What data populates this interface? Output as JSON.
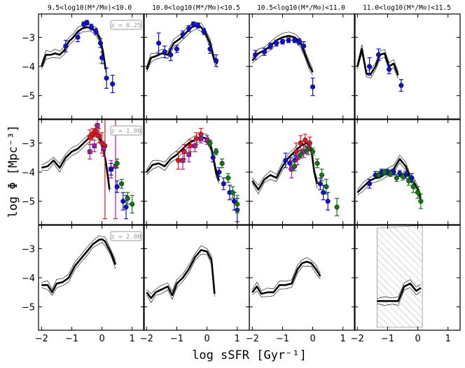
{
  "chart_data": {
    "type": "line",
    "title": "",
    "xlabel": "log sSFR [Gyr⁻¹]",
    "ylabel": "log Φ [Mpc⁻³]",
    "xlim": [
      -2.1,
      1.4
    ],
    "ylim": [
      -5.8,
      -2.2
    ],
    "x_ticks": [
      "−2",
      "−1",
      "0",
      "1"
    ],
    "y_ticks": [
      "−3",
      "−4",
      "−5"
    ],
    "columns": [
      "9.5<log10(M*/M⊙)<10.0",
      "10.0<log10(M*/M⊙)<10.5",
      "10.5<log10(M*/M⊙)<11.0",
      "11.0<log10(M*/M⊙)<11.5"
    ],
    "z_labels": [
      "z = 0.25",
      "z = 1.00",
      "z = 2.00"
    ],
    "colors": {
      "model": "#000000",
      "blue": "#1010cc",
      "red": "#ee1111",
      "purple": "#a020a0",
      "green": "#117711",
      "hatch": "#888888"
    },
    "panels": [
      {
        "row": 0,
        "col": 0,
        "model": {
          "x": [
            -2.0,
            -1.85,
            -1.7,
            -1.55,
            -1.4,
            -1.25,
            -1.1,
            -0.95,
            -0.8,
            -0.65,
            -0.5,
            -0.35,
            -0.2,
            -0.05,
            0.05,
            0.12
          ],
          "y": [
            -4.0,
            -3.6,
            -3.6,
            -3.55,
            -3.6,
            -3.45,
            -3.15,
            -3.0,
            -2.8,
            -2.7,
            -2.65,
            -2.7,
            -2.8,
            -3.1,
            -3.6,
            -4.1
          ]
        },
        "observations": [
          {
            "color": "blue",
            "x": [
              -1.2,
              -0.8,
              -0.6,
              -0.5,
              -0.35,
              -0.2,
              -0.05,
              0.0,
              0.15,
              0.35
            ],
            "y": [
              -3.3,
              -3.0,
              -2.55,
              -2.5,
              -2.65,
              -2.8,
              -3.2,
              -3.7,
              -4.4,
              -4.6
            ],
            "err": [
              0.2,
              0.15,
              0.08,
              0.08,
              0.1,
              0.1,
              0.15,
              0.2,
              0.35,
              0.3
            ]
          }
        ]
      },
      {
        "row": 0,
        "col": 1,
        "model": {
          "x": [
            -2.0,
            -1.85,
            -1.7,
            -1.5,
            -1.3,
            -1.1,
            -0.9,
            -0.7,
            -0.5,
            -0.35,
            -0.2,
            -0.05,
            0.1,
            0.25,
            0.35
          ],
          "y": [
            -4.1,
            -3.7,
            -3.65,
            -3.55,
            -3.6,
            -3.2,
            -3.05,
            -2.85,
            -2.65,
            -2.6,
            -2.65,
            -2.85,
            -3.2,
            -3.8,
            -3.9
          ]
        },
        "observations": [
          {
            "color": "blue",
            "x": [
              -1.6,
              -1.4,
              -1.2,
              -1.0,
              -0.8,
              -0.6,
              -0.45,
              -0.3,
              -0.1,
              0.1,
              0.3
            ],
            "y": [
              -3.2,
              -3.5,
              -3.6,
              -3.4,
              -2.9,
              -2.7,
              -2.55,
              -2.6,
              -2.8,
              -3.4,
              -3.8
            ],
            "err": [
              0.35,
              0.2,
              0.2,
              0.12,
              0.12,
              0.1,
              0.08,
              0.08,
              0.1,
              0.15,
              0.2
            ]
          }
        ]
      },
      {
        "row": 0,
        "col": 2,
        "model": {
          "x": [
            -2.0,
            -1.8,
            -1.6,
            -1.4,
            -1.2,
            -1.0,
            -0.8,
            -0.6,
            -0.4,
            -0.25,
            -0.1,
            0.0
          ],
          "y": [
            -3.8,
            -3.55,
            -3.45,
            -3.3,
            -3.1,
            -3.0,
            -2.95,
            -3.0,
            -3.2,
            -3.6,
            -4.0,
            -4.2
          ]
        },
        "observations": [
          {
            "color": "blue",
            "x": [
              -1.9,
              -1.6,
              -1.4,
              -1.2,
              -1.0,
              -0.8,
              -0.6,
              -0.45,
              -0.3,
              0.0
            ],
            "y": [
              -3.6,
              -3.5,
              -3.3,
              -3.2,
              -3.15,
              -3.1,
              -3.1,
              -3.15,
              -3.3,
              -4.7
            ],
            "err": [
              0.15,
              0.12,
              0.1,
              0.1,
              0.08,
              0.08,
              0.08,
              0.1,
              0.15,
              0.3
            ]
          }
        ]
      },
      {
        "row": 0,
        "col": 3,
        "model": {
          "x": [
            -2.0,
            -1.85,
            -1.7,
            -1.55,
            -1.4,
            -1.25,
            -1.1,
            -0.95,
            -0.8,
            -0.65
          ],
          "y": [
            -4.0,
            -3.4,
            -4.25,
            -4.25,
            -4.0,
            -3.6,
            -3.55,
            -4.0,
            -3.9,
            -4.3
          ]
        },
        "observations": [
          {
            "color": "blue",
            "x": [
              -1.6,
              -1.3,
              -0.95,
              -0.55
            ],
            "y": [
              -4.0,
              -3.6,
              -4.1,
              -4.65
            ],
            "err": [
              0.3,
              0.2,
              0.15,
              0.2
            ]
          }
        ]
      },
      {
        "row": 1,
        "col": 0,
        "model": {
          "x": [
            -2.0,
            -1.8,
            -1.6,
            -1.4,
            -1.2,
            -1.0,
            -0.8,
            -0.6,
            -0.4,
            -0.2,
            -0.05,
            0.05,
            0.15,
            0.25
          ],
          "y": [
            -3.85,
            -3.8,
            -3.6,
            -3.85,
            -3.5,
            -3.3,
            -3.2,
            -3.0,
            -2.8,
            -2.6,
            -2.9,
            -3.2,
            -3.8,
            -4.6
          ]
        },
        "observations": [
          {
            "color": "red",
            "x": [
              -0.4,
              -0.3,
              -0.2,
              -0.1,
              0.0,
              0.1
            ],
            "y": [
              -2.8,
              -2.7,
              -2.6,
              -2.75,
              -3.0,
              -3.1
            ],
            "err": [
              0.25,
              0.2,
              0.2,
              0.25,
              0.35,
              2.5
            ]
          },
          {
            "color": "purple",
            "x": [
              -0.4,
              -0.25,
              -0.15,
              0.05,
              0.3,
              0.45
            ],
            "y": [
              -3.3,
              -3.1,
              -2.4,
              -3.2,
              -3.9,
              -3.8
            ],
            "err": [
              0.25,
              0.2,
              0.3,
              0.25,
              0.3,
              1.8
            ]
          },
          {
            "color": "blue",
            "x": [
              0.3,
              0.5,
              0.7,
              0.8
            ],
            "y": [
              -3.9,
              -4.5,
              -5.0,
              -5.2
            ],
            "err": [
              0.2,
              0.2,
              0.3,
              0.4
            ]
          },
          {
            "color": "green",
            "x": [
              0.5,
              0.65,
              0.85,
              1.0
            ],
            "y": [
              -3.7,
              -4.4,
              -4.9,
              -5.1
            ],
            "err": [
              0.15,
              0.15,
              0.2,
              0.3
            ]
          }
        ]
      },
      {
        "row": 1,
        "col": 1,
        "model": {
          "x": [
            -2.0,
            -1.8,
            -1.6,
            -1.4,
            -1.2,
            -1.0,
            -0.8,
            -0.6,
            -0.4,
            -0.2,
            0.0,
            0.15,
            0.3,
            0.4
          ],
          "y": [
            -4.0,
            -3.75,
            -3.7,
            -3.8,
            -3.55,
            -3.4,
            -3.2,
            -3.0,
            -2.9,
            -2.8,
            -2.85,
            -3.2,
            -4.0,
            -4.3
          ]
        },
        "observations": [
          {
            "color": "red",
            "x": [
              -0.95,
              -0.75,
              -0.55,
              -0.35,
              -0.2
            ],
            "y": [
              -3.6,
              -3.3,
              -3.1,
              -2.85,
              -2.7
            ],
            "err": [
              0.3,
              0.25,
              0.2,
              0.2,
              0.2
            ]
          },
          {
            "color": "purple",
            "x": [
              -0.8,
              -0.6,
              -0.4,
              -0.2,
              0.0
            ],
            "y": [
              -3.6,
              -3.4,
              -3.1,
              -2.85,
              -2.9
            ],
            "err": [
              0.3,
              0.25,
              0.2,
              0.15,
              0.15
            ]
          },
          {
            "color": "blue",
            "x": [
              0.2,
              0.4,
              0.55,
              0.75,
              0.9,
              1.0
            ],
            "y": [
              -3.5,
              -4.0,
              -4.4,
              -4.7,
              -5.0,
              -5.3
            ],
            "err": [
              0.15,
              0.15,
              0.2,
              0.25,
              0.3,
              0.4
            ]
          },
          {
            "color": "green",
            "x": [
              0.1,
              0.3,
              0.5,
              0.7,
              0.85,
              1.0
            ],
            "y": [
              -3.0,
              -3.3,
              -3.7,
              -4.2,
              -4.7,
              -5.1
            ],
            "err": [
              0.1,
              0.1,
              0.15,
              0.15,
              0.2,
              0.3
            ]
          }
        ]
      },
      {
        "row": 1,
        "col": 2,
        "model": {
          "x": [
            -2.0,
            -1.8,
            -1.6,
            -1.4,
            -1.2,
            -1.0,
            -0.8,
            -0.6,
            -0.4,
            -0.2,
            -0.05,
            0.05,
            0.15
          ],
          "y": [
            -4.3,
            -4.6,
            -4.25,
            -4.1,
            -4.2,
            -3.8,
            -3.5,
            -3.3,
            -3.1,
            -3.0,
            -3.2,
            -4.0,
            -4.4
          ]
        },
        "observations": [
          {
            "color": "blue",
            "x": [
              -0.9,
              -0.75,
              -0.6
            ],
            "y": [
              -3.6,
              -3.7,
              -3.6
            ],
            "err": [
              0.25,
              0.2,
              0.2
            ]
          },
          {
            "color": "red",
            "x": [
              -0.55,
              -0.4,
              -0.25,
              -0.1
            ],
            "y": [
              -3.3,
              -3.0,
              -2.9,
              -3.0
            ],
            "err": [
              0.3,
              0.25,
              0.2,
              0.2
            ]
          },
          {
            "color": "purple",
            "x": [
              -0.7,
              -0.5,
              -0.3,
              -0.15
            ],
            "y": [
              -3.9,
              -3.5,
              -3.3,
              -3.2
            ],
            "err": [
              0.3,
              0.25,
              0.2,
              0.2
            ]
          },
          {
            "color": "green",
            "x": [
              -0.6,
              -0.4,
              -0.2,
              0.0,
              0.15,
              0.3
            ],
            "y": [
              -3.8,
              -3.4,
              -3.25,
              -3.3,
              -3.7,
              -4.1
            ],
            "err": [
              0.15,
              0.12,
              0.12,
              0.12,
              0.15,
              0.2
            ]
          },
          {
            "color": "blue",
            "x": [
              0.25,
              0.35,
              0.5
            ],
            "y": [
              -4.4,
              -4.7,
              -5.0
            ],
            "err": [
              0.2,
              0.25,
              0.3
            ]
          },
          {
            "color": "green",
            "x": [
              0.45,
              0.8
            ],
            "y": [
              -4.5,
              -5.2
            ],
            "err": [
              0.25,
              0.3
            ]
          }
        ]
      },
      {
        "row": 1,
        "col": 3,
        "model": {
          "x": [
            -2.0,
            -1.8,
            -1.6,
            -1.4,
            -1.2,
            -1.0,
            -0.8,
            -0.6,
            -0.4,
            -0.25,
            -0.1,
            0.0,
            0.1
          ],
          "y": [
            -4.7,
            -4.5,
            -4.3,
            -4.2,
            -4.15,
            -4.0,
            -3.9,
            -3.55,
            -3.8,
            -4.2,
            -4.4,
            -4.6,
            -4.9
          ]
        },
        "observations": [
          {
            "color": "blue",
            "x": [
              -1.6,
              -1.4,
              -1.2,
              -1.0,
              -0.8,
              -0.6,
              -0.4,
              -0.2
            ],
            "y": [
              -4.4,
              -4.1,
              -4.0,
              -4.0,
              -4.0,
              -4.05,
              -4.1,
              -4.2
            ],
            "err": [
              0.15,
              0.12,
              0.1,
              0.1,
              0.1,
              0.1,
              0.12,
              0.15
            ]
          },
          {
            "color": "green",
            "x": [
              -1.3,
              -1.1,
              -0.9,
              -0.7,
              -0.5,
              -0.3,
              -0.15,
              0.0,
              0.1
            ],
            "y": [
              -4.1,
              -4.0,
              -4.05,
              -4.2,
              -4.15,
              -4.3,
              -4.5,
              -4.7,
              -5.0
            ],
            "err": [
              0.12,
              0.1,
              0.1,
              0.12,
              0.12,
              0.15,
              0.2,
              0.2,
              0.25
            ]
          }
        ]
      },
      {
        "row": 2,
        "col": 0,
        "model": {
          "x": [
            -2.0,
            -1.8,
            -1.65,
            -1.5,
            -1.3,
            -1.1,
            -0.9,
            -0.7,
            -0.5,
            -0.3,
            -0.1,
            0.0,
            0.1,
            0.3,
            0.45
          ],
          "y": [
            -4.25,
            -4.25,
            -4.5,
            -4.2,
            -4.15,
            -4.0,
            -3.6,
            -3.35,
            -3.1,
            -2.85,
            -2.7,
            -2.68,
            -2.75,
            -3.15,
            -3.55
          ]
        },
        "observations": []
      },
      {
        "row": 2,
        "col": 1,
        "model": {
          "x": [
            -2.0,
            -1.85,
            -1.7,
            -1.5,
            -1.3,
            -1.15,
            -1.0,
            -0.8,
            -0.6,
            -0.4,
            -0.2,
            0.0,
            0.15,
            0.25
          ],
          "y": [
            -4.5,
            -4.7,
            -4.5,
            -4.4,
            -4.3,
            -4.6,
            -4.2,
            -4.0,
            -3.7,
            -3.3,
            -3.05,
            -3.1,
            -3.4,
            -4.55
          ]
        },
        "observations": []
      },
      {
        "row": 2,
        "col": 2,
        "model": {
          "x": [
            -2.0,
            -1.85,
            -1.7,
            -1.5,
            -1.3,
            -1.1,
            -0.9,
            -0.7,
            -0.5,
            -0.35,
            -0.2,
            -0.05,
            0.1,
            0.25
          ],
          "y": [
            -4.5,
            -4.3,
            -4.55,
            -4.5,
            -4.5,
            -4.25,
            -4.25,
            -4.2,
            -3.7,
            -3.5,
            -3.45,
            -3.5,
            -3.7,
            -3.95
          ]
        },
        "observations": []
      },
      {
        "row": 2,
        "col": 3,
        "model": {
          "x": [
            -1.35,
            -1.1,
            -0.85,
            -0.65,
            -0.45,
            -0.25,
            -0.05,
            0.1
          ],
          "y": [
            -4.8,
            -4.8,
            -4.8,
            -4.8,
            -4.3,
            -4.2,
            -4.45,
            -4.35
          ]
        },
        "hatch": {
          "x_range": [
            -1.35,
            0.15
          ],
          "y_top": -2.3,
          "y_top_right": -2.2,
          "y_bottom": -5.7
        },
        "observations": []
      }
    ]
  }
}
